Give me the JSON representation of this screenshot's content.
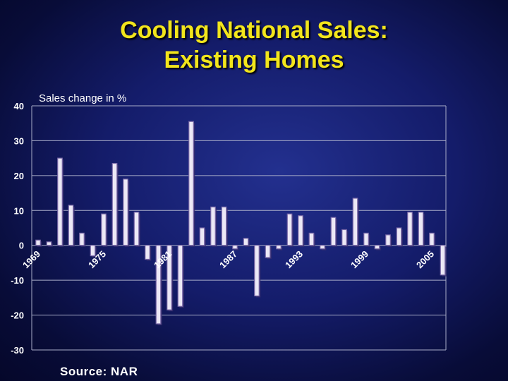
{
  "slide": {
    "title_line1": "Cooling National Sales:",
    "title_line2": "Existing Homes",
    "source": "Source: NAR"
  },
  "chart_data": {
    "type": "bar",
    "title": "Cooling National Sales: Existing Homes",
    "ylabel": "Sales change in %",
    "xlabel": "",
    "ylim": [
      -30,
      40
    ],
    "yticks": [
      40,
      30,
      20,
      10,
      0,
      -10,
      -20,
      -30
    ],
    "grid": true,
    "bar_color": "#ece8f6",
    "bar_border_color": "#7a6aa8",
    "x": [
      1969,
      1970,
      1971,
      1972,
      1973,
      1974,
      1975,
      1976,
      1977,
      1978,
      1979,
      1980,
      1981,
      1982,
      1983,
      1984,
      1985,
      1986,
      1987,
      1988,
      1989,
      1990,
      1991,
      1992,
      1993,
      1994,
      1995,
      1996,
      1997,
      1998,
      1999,
      2000,
      2001,
      2002,
      2003,
      2004,
      2005,
      2006
    ],
    "values": [
      1.5,
      1,
      25,
      11.5,
      3.5,
      -3,
      9,
      23.5,
      19,
      9.5,
      -4,
      -22.5,
      -18.5,
      -17.5,
      35.5,
      5,
      11,
      11,
      -1,
      2,
      -14.5,
      -3.5,
      -1,
      9,
      8.5,
      3.5,
      -1,
      8,
      4.5,
      13.5,
      3.5,
      -1,
      3,
      5,
      9.5,
      9.5,
      3.5,
      -8.5
    ],
    "x_tick_labels": [
      "1969",
      "1975",
      "1981",
      "1987",
      "1993",
      "1999",
      "2005"
    ]
  }
}
